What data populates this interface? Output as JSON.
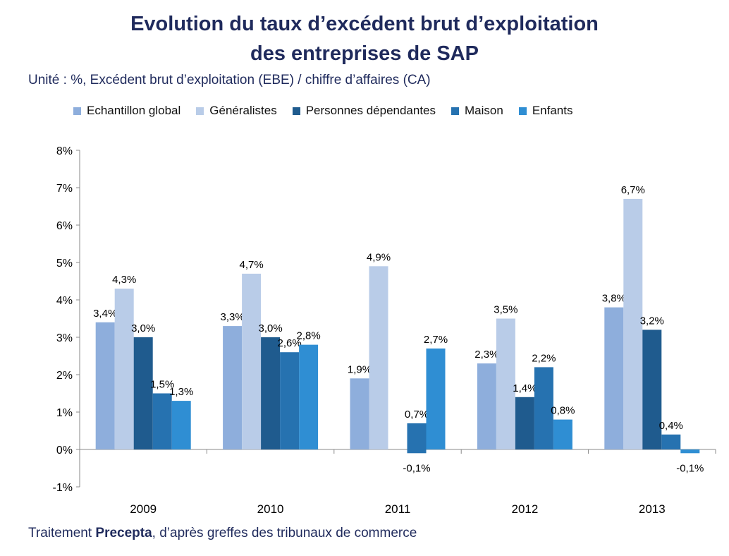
{
  "title_line1": "Evolution du taux d’excédent brut d’exploitation",
  "title_line2": "des entreprises de SAP",
  "subtitle": "Unité : %, Excédent brut d’exploitation (EBE) / chiffre d’affaires (CA)",
  "footnote": {
    "prefix": "Traitement ",
    "bold": "Precepta",
    "suffix": ", d’après greffes des tribunaux de commerce"
  },
  "chart_data": {
    "type": "bar",
    "categories": [
      "2009",
      "2010",
      "2011",
      "2012",
      "2013"
    ],
    "ylim": [
      -1,
      8
    ],
    "yticks": [
      -1,
      0,
      1,
      2,
      3,
      4,
      5,
      6,
      7,
      8
    ],
    "ytick_labels": [
      "-1%",
      "0%",
      "1%",
      "2%",
      "3%",
      "4%",
      "5%",
      "6%",
      "7%",
      "8%"
    ],
    "legend_position": "top",
    "grid": false,
    "series": [
      {
        "name": "Echantillon global",
        "color": "#8eaedc",
        "values": [
          3.4,
          3.3,
          1.9,
          2.3,
          3.8
        ],
        "labels": [
          "3,4%",
          "3,3%",
          "1,9%",
          "2,3%",
          "3,8%"
        ]
      },
      {
        "name": "Généralistes",
        "color": "#b9cce8",
        "values": [
          4.3,
          4.7,
          4.9,
          3.5,
          6.7
        ],
        "labels": [
          "4,3%",
          "4,7%",
          "4,9%",
          "3,5%",
          "6,7%"
        ]
      },
      {
        "name": "Personnes dépendantes",
        "color": "#1f5b8e",
        "values": [
          3.0,
          3.0,
          null,
          1.4,
          3.2
        ],
        "labels": [
          "3,0%",
          "3,0%",
          "",
          "1,4%",
          "3,2%"
        ]
      },
      {
        "name": "Maison",
        "color": "#2672b0",
        "values": [
          1.5,
          2.6,
          0.7,
          2.2,
          0.4
        ],
        "labels": [
          "1,5%",
          "2,6%",
          "0,7%",
          "2,2%",
          "0,4%"
        ]
      },
      {
        "name": "Enfants",
        "color": "#2f8ed3",
        "values": [
          1.3,
          2.8,
          2.7,
          0.8,
          -0.1
        ],
        "labels": [
          "1,3%",
          "2,8%",
          "2,7%",
          "0,8%",
          "-0,1%"
        ]
      }
    ],
    "extra_bars": [
      {
        "category": "2011",
        "value": -0.1,
        "label": "-0,1%",
        "color": "#2672b0"
      }
    ]
  }
}
